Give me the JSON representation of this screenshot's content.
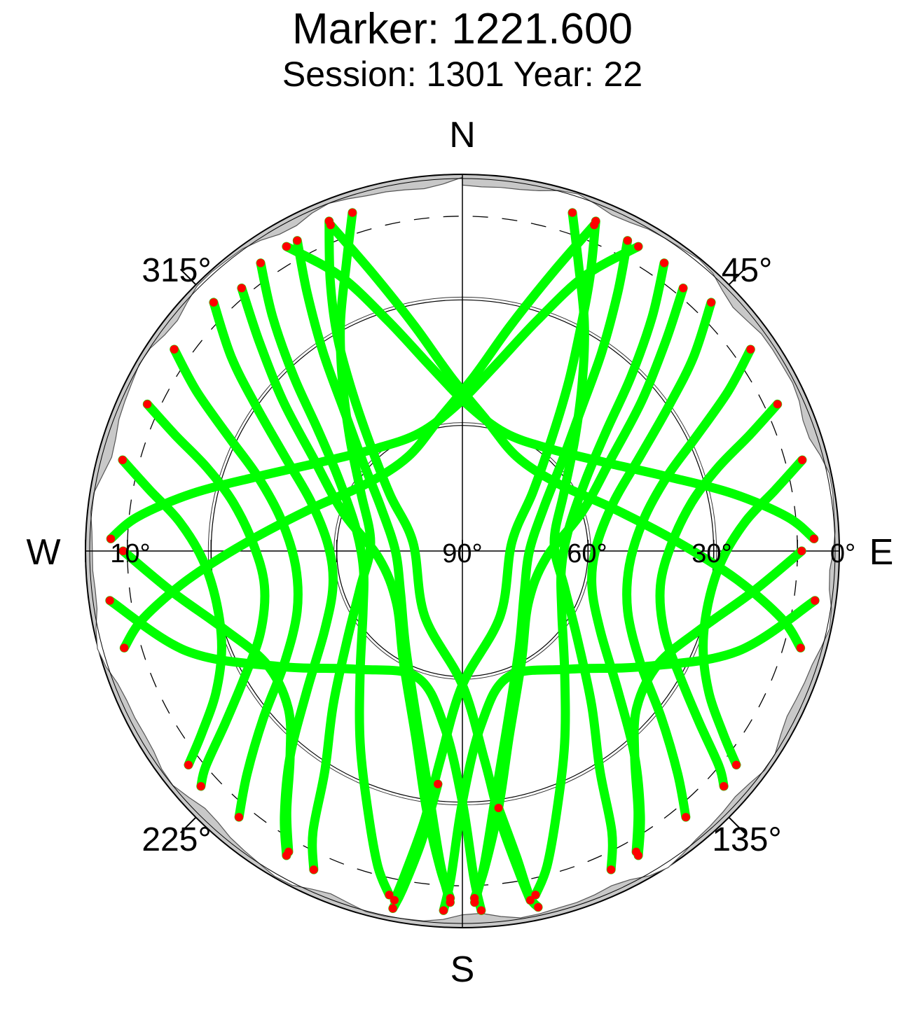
{
  "chart_data": {
    "type": "scatter",
    "projection": "polar-skyplot",
    "title": "Marker: 1221.600",
    "subtitle": "Session: 1301 Year: 22",
    "compass": {
      "north": "N",
      "east": "E",
      "south": "S",
      "west": "W"
    },
    "azimuth_labels": [
      {
        "text": "45°",
        "azimuth": 45
      },
      {
        "text": "135°",
        "azimuth": 135
      },
      {
        "text": "225°",
        "azimuth": 225
      },
      {
        "text": "315°",
        "azimuth": 315
      }
    ],
    "elevation_labels": [
      {
        "text": "0°",
        "elevation": 0
      },
      {
        "text": "30°",
        "elevation": 30
      },
      {
        "text": "60°",
        "elevation": 60
      },
      {
        "text": "90°",
        "elevation": 90
      },
      {
        "text": "10°",
        "elevation": 10
      }
    ],
    "elevation_circles": [
      30,
      60
    ],
    "cutoff_elevation": 10,
    "elevation_range": [
      0,
      90
    ],
    "colors": {
      "track": "#00ff00",
      "track_end": "#ff0000",
      "mask": "#c8c8c8",
      "grid": "#000000"
    },
    "series": [
      {
        "values": [
          [
            22,
            5
          ],
          [
            25,
            18
          ],
          [
            28,
            30
          ],
          [
            32,
            42
          ],
          [
            38,
            55
          ],
          [
            50,
            68
          ],
          [
            80,
            78
          ],
          [
            150,
            72
          ],
          [
            180,
            58
          ],
          [
            186,
            40
          ],
          [
            188,
            25
          ],
          [
            190,
            12
          ],
          [
            191,
            5
          ]
        ]
      },
      {
        "values": [
          [
            28,
            6
          ],
          [
            31,
            18
          ],
          [
            35,
            32
          ],
          [
            40,
            46
          ],
          [
            48,
            58
          ],
          [
            62,
            68
          ],
          [
            90,
            74
          ],
          [
            125,
            72
          ],
          [
            150,
            63
          ],
          [
            165,
            48
          ],
          [
            172,
            32
          ],
          [
            176,
            15
          ],
          [
            178,
            6
          ]
        ]
      },
      {
        "values": [
          [
            35,
            6
          ],
          [
            39,
            18
          ],
          [
            44,
            32
          ],
          [
            50,
            45
          ],
          [
            60,
            56
          ],
          [
            78,
            64
          ],
          [
            100,
            66
          ],
          [
            122,
            62
          ],
          [
            140,
            52
          ],
          [
            152,
            38
          ],
          [
            160,
            24
          ],
          [
            165,
            12
          ],
          [
            168,
            6
          ]
        ]
      },
      {
        "values": [
          [
            45,
            6
          ],
          [
            50,
            18
          ],
          [
            55,
            30
          ],
          [
            62,
            42
          ],
          [
            72,
            52
          ],
          [
            88,
            58
          ],
          [
            105,
            58
          ],
          [
            120,
            52
          ],
          [
            132,
            40
          ],
          [
            140,
            26
          ],
          [
            146,
            14
          ],
          [
            150,
            6
          ]
        ]
      },
      {
        "values": [
          [
            55,
            6
          ],
          [
            59,
            16
          ],
          [
            64,
            28
          ],
          [
            70,
            38
          ],
          [
            80,
            46
          ],
          [
            95,
            50
          ],
          [
            110,
            48
          ],
          [
            122,
            40
          ],
          [
            130,
            28
          ],
          [
            136,
            16
          ],
          [
            140,
            7
          ]
        ]
      },
      {
        "values": [
          [
            65,
            7
          ],
          [
            68,
            16
          ],
          [
            72,
            26
          ],
          [
            78,
            34
          ],
          [
            88,
            40
          ],
          [
            100,
            42
          ],
          [
            112,
            38
          ],
          [
            120,
            30
          ],
          [
            126,
            20
          ],
          [
            130,
            10
          ],
          [
            132,
            6
          ]
        ]
      },
      {
        "values": [
          [
            75,
            6
          ],
          [
            79,
            14
          ],
          [
            84,
            22
          ],
          [
            92,
            28
          ],
          [
            102,
            30
          ],
          [
            112,
            28
          ],
          [
            120,
            22
          ],
          [
            125,
            14
          ],
          [
            128,
            7
          ]
        ]
      },
      {
        "values": [
          [
            330,
            6
          ],
          [
            336,
            18
          ],
          [
            342,
            32
          ],
          [
            350,
            45
          ],
          [
            2,
            55
          ],
          [
            20,
            60
          ],
          [
            40,
            58
          ],
          [
            58,
            50
          ],
          [
            70,
            38
          ],
          [
            78,
            24
          ],
          [
            84,
            12
          ],
          [
            88,
            6
          ]
        ]
      },
      {
        "values": [
          [
            338,
            6
          ],
          [
            342,
            20
          ],
          [
            348,
            35
          ],
          [
            356,
            48
          ],
          [
            10,
            58
          ],
          [
            30,
            64
          ],
          [
            55,
            62
          ],
          [
            75,
            52
          ],
          [
            88,
            38
          ],
          [
            96,
            24
          ],
          [
            102,
            12
          ],
          [
            106,
            6
          ]
        ]
      },
      {
        "values": [
          [
            18,
            5
          ],
          [
            22,
            16
          ],
          [
            28,
            28
          ],
          [
            35,
            40
          ],
          [
            45,
            52
          ],
          [
            60,
            62
          ],
          [
            85,
            68
          ],
          [
            110,
            64
          ],
          [
            128,
            55
          ],
          [
            140,
            42
          ],
          [
            148,
            28
          ],
          [
            152,
            14
          ],
          [
            155,
            6
          ]
        ]
      },
      {
        "values": [
          [
            40,
            8
          ],
          [
            44,
            20
          ],
          [
            50,
            34
          ],
          [
            58,
            48
          ],
          [
            72,
            60
          ],
          [
            95,
            70
          ],
          [
            128,
            70
          ],
          [
            152,
            60
          ],
          [
            166,
            44
          ],
          [
            172,
            28
          ],
          [
            176,
            14
          ],
          [
            178,
            7
          ]
        ]
      },
      {
        "values": [
          [
            338,
            5
          ],
          [
            334,
            18
          ],
          [
            330,
            30
          ],
          [
            326,
            42
          ],
          [
            320,
            55
          ],
          [
            308,
            68
          ],
          [
            280,
            78
          ],
          [
            210,
            72
          ],
          [
            180,
            58
          ],
          [
            174,
            40
          ],
          [
            172,
            25
          ],
          [
            170,
            12
          ],
          [
            169,
            5
          ]
        ]
      },
      {
        "values": [
          [
            332,
            6
          ],
          [
            329,
            18
          ],
          [
            325,
            32
          ],
          [
            320,
            46
          ],
          [
            312,
            58
          ],
          [
            298,
            68
          ],
          [
            270,
            74
          ],
          [
            235,
            72
          ],
          [
            210,
            63
          ],
          [
            195,
            48
          ],
          [
            188,
            32
          ],
          [
            184,
            15
          ],
          [
            182,
            6
          ]
        ]
      },
      {
        "values": [
          [
            325,
            6
          ],
          [
            321,
            18
          ],
          [
            316,
            32
          ],
          [
            310,
            45
          ],
          [
            300,
            56
          ],
          [
            282,
            64
          ],
          [
            260,
            66
          ],
          [
            238,
            62
          ],
          [
            220,
            52
          ],
          [
            208,
            38
          ],
          [
            200,
            24
          ],
          [
            195,
            12
          ],
          [
            192,
            6
          ]
        ]
      },
      {
        "values": [
          [
            315,
            6
          ],
          [
            310,
            18
          ],
          [
            305,
            30
          ],
          [
            298,
            42
          ],
          [
            288,
            52
          ],
          [
            272,
            58
          ],
          [
            255,
            58
          ],
          [
            240,
            52
          ],
          [
            228,
            40
          ],
          [
            220,
            26
          ],
          [
            214,
            14
          ],
          [
            210,
            6
          ]
        ]
      },
      {
        "values": [
          [
            305,
            6
          ],
          [
            301,
            16
          ],
          [
            296,
            28
          ],
          [
            290,
            38
          ],
          [
            280,
            46
          ],
          [
            265,
            50
          ],
          [
            250,
            48
          ],
          [
            238,
            40
          ],
          [
            230,
            28
          ],
          [
            224,
            16
          ],
          [
            220,
            7
          ]
        ]
      },
      {
        "values": [
          [
            295,
            7
          ],
          [
            292,
            16
          ],
          [
            288,
            26
          ],
          [
            282,
            34
          ],
          [
            272,
            40
          ],
          [
            260,
            42
          ],
          [
            248,
            38
          ],
          [
            240,
            30
          ],
          [
            234,
            20
          ],
          [
            230,
            10
          ],
          [
            228,
            6
          ]
        ]
      },
      {
        "values": [
          [
            285,
            6
          ],
          [
            281,
            14
          ],
          [
            276,
            22
          ],
          [
            268,
            28
          ],
          [
            258,
            30
          ],
          [
            248,
            28
          ],
          [
            240,
            22
          ],
          [
            235,
            14
          ],
          [
            232,
            7
          ]
        ]
      },
      {
        "values": [
          [
            30,
            6
          ],
          [
            24,
            18
          ],
          [
            18,
            32
          ],
          [
            10,
            45
          ],
          [
            358,
            55
          ],
          [
            340,
            60
          ],
          [
            320,
            58
          ],
          [
            302,
            50
          ],
          [
            290,
            38
          ],
          [
            282,
            24
          ],
          [
            276,
            12
          ],
          [
            272,
            6
          ]
        ]
      },
      {
        "values": [
          [
            22,
            6
          ],
          [
            18,
            20
          ],
          [
            12,
            35
          ],
          [
            4,
            48
          ],
          [
            350,
            58
          ],
          [
            330,
            64
          ],
          [
            305,
            62
          ],
          [
            285,
            52
          ],
          [
            272,
            38
          ],
          [
            264,
            24
          ],
          [
            258,
            12
          ],
          [
            254,
            6
          ]
        ]
      },
      {
        "values": [
          [
            342,
            5
          ],
          [
            338,
            16
          ],
          [
            332,
            28
          ],
          [
            325,
            40
          ],
          [
            315,
            52
          ],
          [
            300,
            62
          ],
          [
            275,
            68
          ],
          [
            250,
            64
          ],
          [
            232,
            55
          ],
          [
            220,
            42
          ],
          [
            212,
            28
          ],
          [
            208,
            14
          ],
          [
            205,
            6
          ]
        ]
      },
      {
        "values": [
          [
            320,
            8
          ],
          [
            316,
            20
          ],
          [
            310,
            34
          ],
          [
            302,
            48
          ],
          [
            288,
            60
          ],
          [
            265,
            70
          ],
          [
            232,
            70
          ],
          [
            208,
            60
          ],
          [
            194,
            44
          ],
          [
            188,
            28
          ],
          [
            184,
            14
          ],
          [
            182,
            7
          ]
        ]
      },
      {
        "values": [
          [
            262,
            5
          ],
          [
            250,
            20
          ],
          [
            238,
            38
          ],
          [
            222,
            52
          ],
          [
            200,
            58
          ],
          [
            186,
            48
          ],
          [
            180,
            30
          ],
          [
            178,
            12
          ],
          [
            177,
            4
          ]
        ]
      },
      {
        "values": [
          [
            98,
            5
          ],
          [
            110,
            20
          ],
          [
            122,
            38
          ],
          [
            138,
            52
          ],
          [
            160,
            58
          ],
          [
            174,
            48
          ],
          [
            180,
            30
          ],
          [
            182,
            12
          ],
          [
            183,
            4
          ]
        ]
      },
      {
        "values": [
          [
            270,
            9
          ],
          [
            262,
            20
          ],
          [
            252,
            30
          ],
          [
            240,
            36
          ],
          [
            228,
            34
          ],
          [
            220,
            26
          ],
          [
            214,
            15
          ],
          [
            210,
            7
          ]
        ]
      },
      {
        "values": [
          [
            90,
            9
          ],
          [
            98,
            20
          ],
          [
            108,
            30
          ],
          [
            120,
            36
          ],
          [
            132,
            34
          ],
          [
            140,
            26
          ],
          [
            146,
            15
          ],
          [
            150,
            7
          ]
        ]
      },
      {
        "values": [
          [
            186,
            34
          ],
          [
            188,
            20
          ],
          [
            190,
            8
          ],
          [
            191,
            3
          ]
        ]
      },
      {
        "values": [
          [
            172,
            28
          ],
          [
            170,
            16
          ],
          [
            169,
            6
          ],
          [
            168,
            3
          ]
        ]
      }
    ]
  }
}
